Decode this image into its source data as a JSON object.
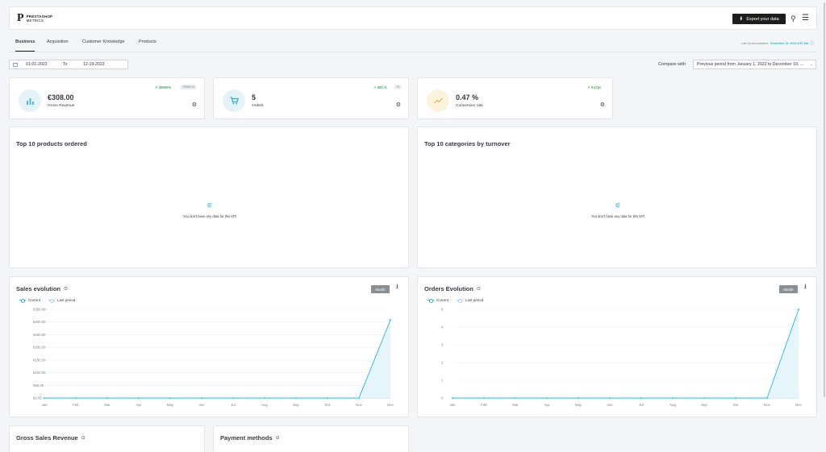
{
  "header": {
    "logo_mark": "P",
    "logo_line1": "PRESTASHOP",
    "logo_line2": "METRICS",
    "export_label": "Export your data",
    "export_icon": "download-icon",
    "pin_icon": "pin-off-icon",
    "menu_icon": "hamburger-icon"
  },
  "tabs": [
    {
      "label": "Business",
      "active": true
    },
    {
      "label": "Acquisition",
      "active": false
    },
    {
      "label": "Customer Knowledge",
      "active": false
    },
    {
      "label": "Products",
      "active": false
    }
  ],
  "sync": {
    "label": "Last Synchronization:",
    "value": "December 19, 2023 9:57 AM"
  },
  "daterange": {
    "from": "01-01-2023",
    "to_label": "To",
    "to": "12-19-2023"
  },
  "compare": {
    "label": "Compare with",
    "value": "Previous period from January 1, 2022 to December 19, ..."
  },
  "kpis": [
    {
      "value": "€308.00",
      "label": "Gross Revenue",
      "trend": "30800%",
      "badge": "+€308.00",
      "icon": "bar-chart-icon",
      "bg": "#e4f3f8",
      "fg": "#5bb7d0"
    },
    {
      "value": "5",
      "label": "Orders",
      "trend": "500 %",
      "badge": "+5",
      "icon": "cart-icon",
      "bg": "#e4f3f8",
      "fg": "#3aa9c9"
    },
    {
      "value": "0.47 %",
      "label": "Conversion rate",
      "trend": "0.47pt",
      "badge": "",
      "icon": "trend-icon",
      "bg": "#fdf3dc",
      "fg": "#e0b04b"
    }
  ],
  "panels": {
    "top_products_title": "Top 10 products ordered",
    "top_categories_title": "Top 10 categories by turnover",
    "empty_text": "You don't have any data for this KPI",
    "sales_title": "Sales evolution",
    "orders_title": "Orders Evolution",
    "gross_sales_title": "Gross Sales Revenue",
    "payment_title": "Payment methods",
    "month_label": "Month",
    "legend_current": "Current",
    "legend_last": "Last period"
  },
  "colors": {
    "accent": "#25b9d7",
    "positive": "#41a85f"
  },
  "chart_data": [
    {
      "type": "area",
      "categories": [
        "Jan",
        "Feb",
        "Mar",
        "Apr",
        "May",
        "Jun",
        "Jul",
        "Aug",
        "Sep",
        "Oct",
        "Nov",
        "Dec"
      ],
      "series": [
        {
          "name": "Current",
          "values": [
            0,
            0,
            0,
            0,
            0,
            0,
            0,
            0,
            0,
            0,
            0,
            308
          ]
        },
        {
          "name": "Last period",
          "values": [
            0,
            0,
            0,
            0,
            0,
            0,
            0,
            0,
            0,
            0,
            0,
            0
          ]
        }
      ],
      "yticks": [
        "€0.00",
        "€50.00",
        "€100.00",
        "€150.00",
        "€200.00",
        "€250.00",
        "€300.00",
        "€350.00"
      ],
      "ylim": [
        0,
        350
      ],
      "grid": true,
      "legend": "top-left"
    },
    {
      "type": "area",
      "categories": [
        "Jan",
        "Feb",
        "Mar",
        "Apr",
        "May",
        "Jun",
        "Jul",
        "Aug",
        "Sep",
        "Oct",
        "Nov",
        "Dec"
      ],
      "series": [
        {
          "name": "Current",
          "values": [
            0,
            0,
            0,
            0,
            0,
            0,
            0,
            0,
            0,
            0,
            0,
            5
          ]
        },
        {
          "name": "Last period",
          "values": [
            0,
            0,
            0,
            0,
            0,
            0,
            0,
            0,
            0,
            0,
            0,
            0
          ]
        }
      ],
      "yticks": [
        "0",
        "1",
        "2",
        "3",
        "4",
        "5"
      ],
      "ylim": [
        0,
        5
      ],
      "grid": true,
      "legend": "top-left"
    }
  ]
}
